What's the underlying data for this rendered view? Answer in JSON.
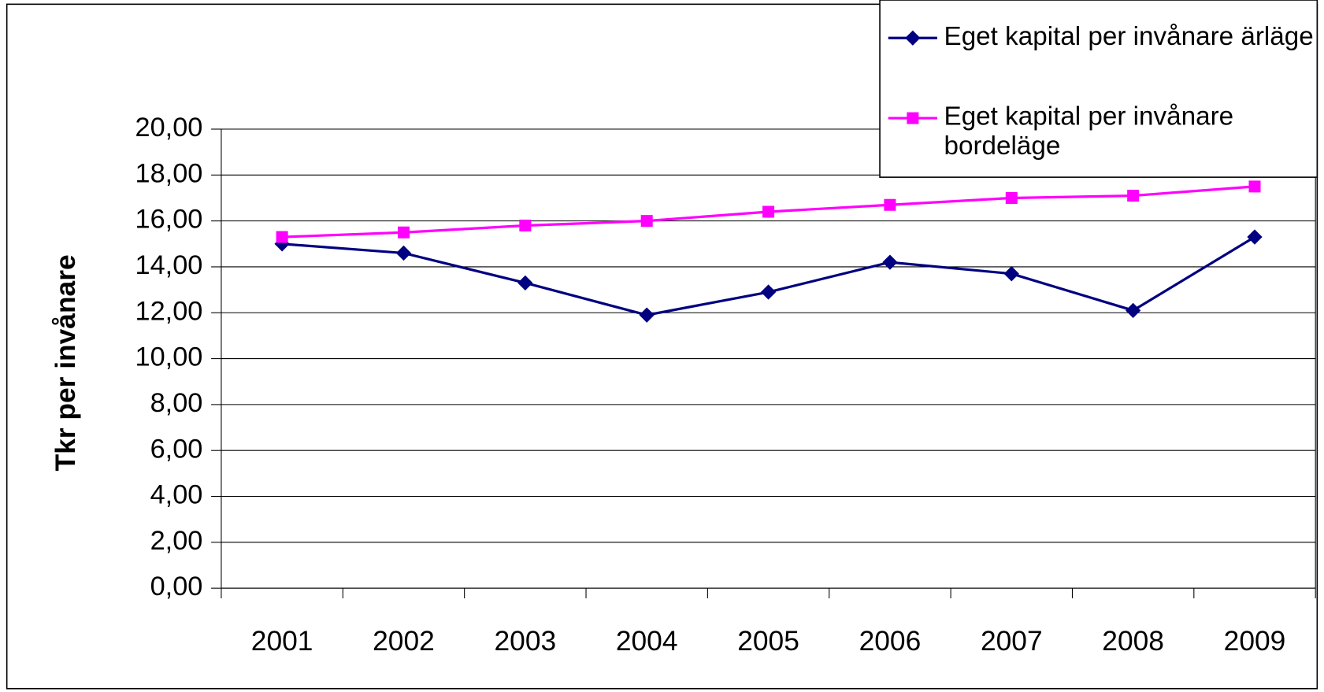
{
  "chart_data": {
    "type": "line",
    "y_label": "Tkr per invånare",
    "categories": [
      "2001",
      "2002",
      "2003",
      "2004",
      "2005",
      "2006",
      "2007",
      "2008",
      "2009"
    ],
    "series": [
      {
        "name": "Eget kapital per invånare ärläge",
        "color": "#000080",
        "marker": "diamond",
        "values": [
          15.0,
          14.6,
          13.3,
          11.9,
          12.9,
          14.2,
          13.7,
          12.1,
          15.3
        ]
      },
      {
        "name": "Eget kapital per invånare bordeläge",
        "color": "#ff00ff",
        "marker": "square",
        "values": [
          15.3,
          15.5,
          15.8,
          16.0,
          16.4,
          16.7,
          17.0,
          17.1,
          17.5
        ]
      }
    ],
    "ylim": [
      0,
      20
    ],
    "yticks": [
      {
        "value": 0,
        "label": "0,00"
      },
      {
        "value": 2,
        "label": "2,00"
      },
      {
        "value": 4,
        "label": "4,00"
      },
      {
        "value": 6,
        "label": "6,00"
      },
      {
        "value": 8,
        "label": "8,00"
      },
      {
        "value": 10,
        "label": "10,00"
      },
      {
        "value": 12,
        "label": "12,00"
      },
      {
        "value": 14,
        "label": "14,00"
      },
      {
        "value": 16,
        "label": "16,00"
      },
      {
        "value": 18,
        "label": "18,00"
      },
      {
        "value": 20,
        "label": "20,00"
      }
    ],
    "grid": true,
    "legend": "top-right"
  }
}
